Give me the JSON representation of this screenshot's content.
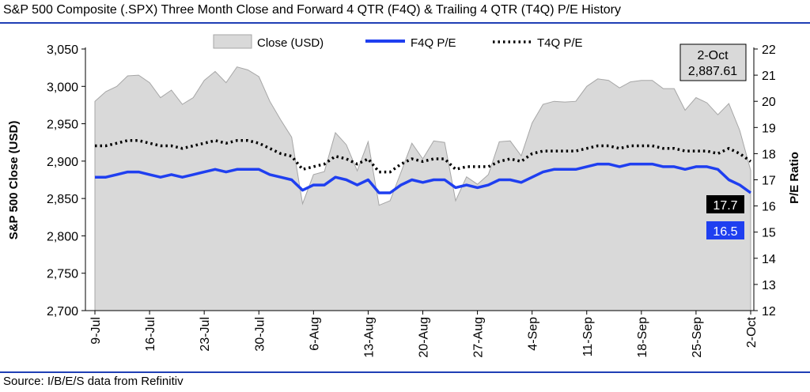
{
  "title": "S&P 500 Composite (.SPX) Three Month Close and Forward 4 QTR (F4Q) & Trailing 4 QTR (T4Q) P/E History",
  "source": "Source: I/B/E/S data from Refinitiv",
  "colors": {
    "area": "#d9d9d9",
    "area_edge": "#a6a6a6",
    "f4q": "#1f3ff0",
    "t4q": "#000000",
    "rule": "#1f3fb5"
  },
  "chart_data": {
    "type": "area",
    "legend": [
      "Close (USD)",
      "F4Q P/E",
      "T4Q P/E"
    ],
    "legend_position": "top",
    "ylabel_left": "S&P 500 Close (USD)",
    "ylabel_right": "P/E Ratio",
    "ylim_left": [
      2700,
      3050
    ],
    "yticks_left": [
      "2,700",
      "2,750",
      "2,800",
      "2,850",
      "2,900",
      "2,950",
      "3,000",
      "3,050"
    ],
    "ylim_right": [
      12,
      22
    ],
    "yticks_right": [
      "12",
      "13",
      "14",
      "15",
      "16",
      "17",
      "18",
      "19",
      "20",
      "21",
      "22"
    ],
    "xticks": [
      "9-Jul",
      "16-Jul",
      "23-Jul",
      "30-Jul",
      "6-Aug",
      "13-Aug",
      "20-Aug",
      "27-Aug",
      "4-Sep",
      "11-Sep",
      "18-Sep",
      "25-Sep",
      "2-Oct"
    ],
    "x": [
      "9-Jul",
      "10-Jul",
      "11-Jul",
      "12-Jul",
      "13-Jul",
      "16-Jul",
      "17-Jul",
      "18-Jul",
      "19-Jul",
      "20-Jul",
      "23-Jul",
      "24-Jul",
      "25-Jul",
      "26-Jul",
      "27-Jul",
      "30-Jul",
      "31-Jul",
      "1-Aug",
      "2-Aug",
      "3-Aug",
      "6-Aug",
      "7-Aug",
      "8-Aug",
      "9-Aug",
      "10-Aug",
      "13-Aug",
      "14-Aug",
      "15-Aug",
      "16-Aug",
      "17-Aug",
      "20-Aug",
      "21-Aug",
      "22-Aug",
      "23-Aug",
      "24-Aug",
      "27-Aug",
      "28-Aug",
      "29-Aug",
      "30-Aug",
      "31-Aug",
      "4-Sep",
      "5-Sep",
      "6-Sep",
      "7-Sep",
      "10-Sep",
      "11-Sep",
      "12-Sep",
      "13-Sep",
      "14-Sep",
      "17-Sep",
      "18-Sep",
      "19-Sep",
      "20-Sep",
      "21-Sep",
      "24-Sep",
      "25-Sep",
      "26-Sep",
      "27-Sep",
      "28-Sep",
      "1-Oct",
      "2-Oct"
    ],
    "series": [
      {
        "name": "Close (USD)",
        "axis": "left",
        "values": [
          2980,
          2993,
          3000,
          3014,
          3015,
          3005,
          2985,
          2995,
          2976,
          2985,
          3008,
          3020,
          3005,
          3026,
          3022,
          3013,
          2980,
          2955,
          2932,
          2843,
          2882,
          2886,
          2938,
          2922,
          2887,
          2926,
          2841,
          2847,
          2885,
          2924,
          2903,
          2927,
          2925,
          2847,
          2879,
          2869,
          2882,
          2926,
          2927,
          2907,
          2951,
          2976,
          2980,
          2979,
          2980,
          3000,
          3010,
          3008,
          2998,
          3006,
          3008,
          3008,
          2997,
          2997,
          2968,
          2985,
          2978,
          2962,
          2977,
          2941,
          2887.61
        ]
      },
      {
        "name": "F4Q P/E",
        "axis": "right",
        "values": [
          17.1,
          17.1,
          17.2,
          17.3,
          17.3,
          17.2,
          17.1,
          17.2,
          17.1,
          17.2,
          17.3,
          17.4,
          17.3,
          17.4,
          17.4,
          17.4,
          17.2,
          17.1,
          17.0,
          16.6,
          16.8,
          16.8,
          17.1,
          17.0,
          16.8,
          17.0,
          16.5,
          16.5,
          16.8,
          17.0,
          16.9,
          17.0,
          17.0,
          16.7,
          16.8,
          16.7,
          16.8,
          17.0,
          17.0,
          16.9,
          17.1,
          17.3,
          17.4,
          17.4,
          17.4,
          17.5,
          17.6,
          17.6,
          17.5,
          17.6,
          17.6,
          17.6,
          17.5,
          17.5,
          17.4,
          17.5,
          17.5,
          17.4,
          17.0,
          16.8,
          16.5
        ]
      },
      {
        "name": "T4Q P/E",
        "axis": "right",
        "values": [
          18.3,
          18.3,
          18.4,
          18.5,
          18.5,
          18.4,
          18.3,
          18.3,
          18.2,
          18.3,
          18.4,
          18.5,
          18.4,
          18.5,
          18.5,
          18.4,
          18.2,
          18.0,
          17.9,
          17.4,
          17.5,
          17.6,
          17.9,
          17.8,
          17.6,
          17.8,
          17.3,
          17.3,
          17.6,
          17.8,
          17.7,
          17.8,
          17.8,
          17.4,
          17.5,
          17.5,
          17.5,
          17.7,
          17.8,
          17.7,
          18.0,
          18.1,
          18.1,
          18.1,
          18.1,
          18.2,
          18.3,
          18.3,
          18.2,
          18.3,
          18.3,
          18.3,
          18.2,
          18.2,
          18.1,
          18.1,
          18.1,
          18.0,
          18.2,
          18.0,
          17.7
        ]
      }
    ],
    "annotations": {
      "date_box_line1": "2-Oct",
      "date_box_line2": "2,887.61",
      "t4q_label": "17.7",
      "f4q_label": "16.5"
    }
  }
}
